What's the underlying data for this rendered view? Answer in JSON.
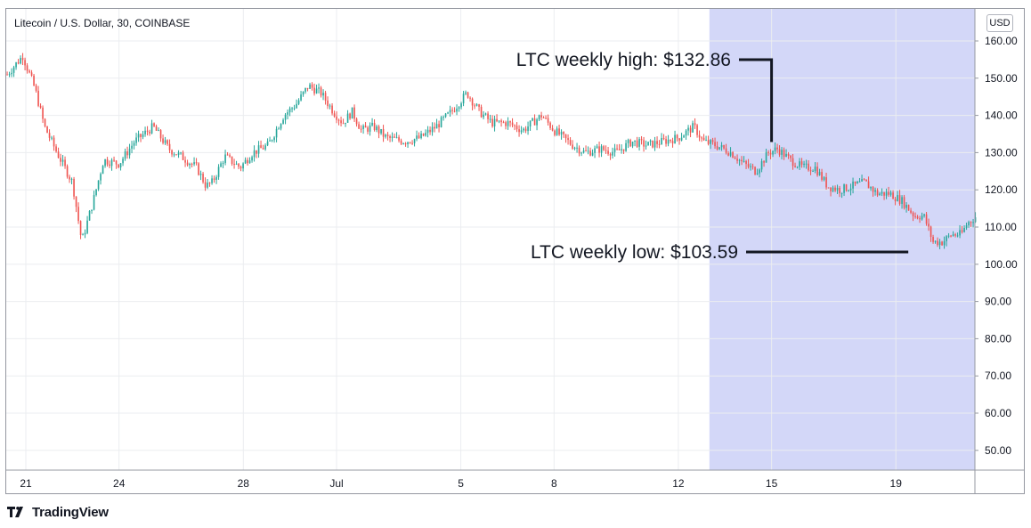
{
  "chart_data": {
    "type": "candlestick",
    "title": "Litecoin / U.S. Dollar, 30, COINBASE",
    "currency": "USD",
    "ylim": [
      45,
      165
    ],
    "y_ticks": [
      "160.00",
      "150.00",
      "140.00",
      "130.00",
      "120.00",
      "110.00",
      "100.00",
      "90.00",
      "80.00",
      "70.00",
      "60.00",
      "50.00"
    ],
    "x_ticks": [
      "21",
      "24",
      "28",
      "Jul",
      "5",
      "8",
      "12",
      "15",
      "19"
    ],
    "grid": true,
    "highlight_region_start": "13",
    "key_points": [
      {
        "d": 20.4,
        "v": 151
      },
      {
        "d": 20.9,
        "v": 156
      },
      {
        "d": 21.3,
        "v": 147
      },
      {
        "d": 21.6,
        "v": 137
      },
      {
        "d": 22.0,
        "v": 130
      },
      {
        "d": 22.5,
        "v": 122
      },
      {
        "d": 22.8,
        "v": 106
      },
      {
        "d": 23.2,
        "v": 118
      },
      {
        "d": 23.5,
        "v": 128
      },
      {
        "d": 24.0,
        "v": 127
      },
      {
        "d": 24.5,
        "v": 133
      },
      {
        "d": 25.1,
        "v": 137
      },
      {
        "d": 25.6,
        "v": 131
      },
      {
        "d": 26.0,
        "v": 129
      },
      {
        "d": 26.5,
        "v": 126
      },
      {
        "d": 26.8,
        "v": 121
      },
      {
        "d": 27.0,
        "v": 122
      },
      {
        "d": 27.4,
        "v": 129
      },
      {
        "d": 27.9,
        "v": 126
      },
      {
        "d": 28.3,
        "v": 130
      },
      {
        "d": 28.8,
        "v": 132
      },
      {
        "d": 29.3,
        "v": 140
      },
      {
        "d": 29.7,
        "v": 143
      },
      {
        "d": 30.1,
        "v": 148
      },
      {
        "d": 30.5,
        "v": 146
      },
      {
        "d": 30.9,
        "v": 141
      },
      {
        "d": 31.2,
        "v": 138
      },
      {
        "d": 31.5,
        "v": 141
      },
      {
        "d": 31.8,
        "v": 136
      },
      {
        "d": 32.2,
        "v": 137
      },
      {
        "d": 32.6,
        "v": 134
      },
      {
        "d": 33.2,
        "v": 133
      },
      {
        "d": 33.7,
        "v": 134
      },
      {
        "d": 34.2,
        "v": 137
      },
      {
        "d": 34.7,
        "v": 141
      },
      {
        "d": 35.0,
        "v": 144
      },
      {
        "d": 35.2,
        "v": 146
      },
      {
        "d": 35.6,
        "v": 141
      },
      {
        "d": 36.0,
        "v": 138
      },
      {
        "d": 36.5,
        "v": 138
      },
      {
        "d": 37.0,
        "v": 136
      },
      {
        "d": 37.6,
        "v": 140
      },
      {
        "d": 38.0,
        "v": 136
      },
      {
        "d": 38.6,
        "v": 132
      },
      {
        "d": 39.0,
        "v": 130
      },
      {
        "d": 39.5,
        "v": 131
      },
      {
        "d": 40.0,
        "v": 130
      },
      {
        "d": 40.5,
        "v": 133
      },
      {
        "d": 41.0,
        "v": 132
      },
      {
        "d": 41.5,
        "v": 133
      },
      {
        "d": 42.0,
        "v": 134
      },
      {
        "d": 42.5,
        "v": 137
      },
      {
        "d": 42.8,
        "v": 133
      },
      {
        "d": 43.2,
        "v": 132
      },
      {
        "d": 43.7,
        "v": 130
      },
      {
        "d": 44.1,
        "v": 127
      },
      {
        "d": 44.5,
        "v": 125
      },
      {
        "d": 44.9,
        "v": 130
      },
      {
        "d": 45.2,
        "v": 131
      },
      {
        "d": 45.6,
        "v": 128
      },
      {
        "d": 46.0,
        "v": 126
      },
      {
        "d": 46.4,
        "v": 126
      },
      {
        "d": 46.8,
        "v": 121
      },
      {
        "d": 47.2,
        "v": 120
      },
      {
        "d": 47.6,
        "v": 121
      },
      {
        "d": 48.0,
        "v": 122
      },
      {
        "d": 48.4,
        "v": 119
      },
      {
        "d": 48.8,
        "v": 119
      },
      {
        "d": 49.2,
        "v": 117
      },
      {
        "d": 49.6,
        "v": 113
      },
      {
        "d": 49.9,
        "v": 113
      },
      {
        "d": 50.2,
        "v": 106
      },
      {
        "d": 50.5,
        "v": 106
      },
      {
        "d": 50.8,
        "v": 108
      },
      {
        "d": 51.1,
        "v": 108
      },
      {
        "d": 51.3,
        "v": 111
      },
      {
        "d": 51.6,
        "v": 113
      }
    ],
    "annotations": [
      {
        "text": "LTC weekly high: $132.86",
        "d": 15.0,
        "v": 132.86
      },
      {
        "text": "LTC weekly low: $103.59",
        "d": 19.4,
        "v": 103.59
      }
    ],
    "colors": {
      "up": "#26a69a",
      "down": "#ef5350",
      "highlight": "#d3d7f8",
      "grid": "#ebedf0",
      "annotation": "#131722"
    }
  },
  "branding": {
    "logo_text": "TradingView"
  }
}
